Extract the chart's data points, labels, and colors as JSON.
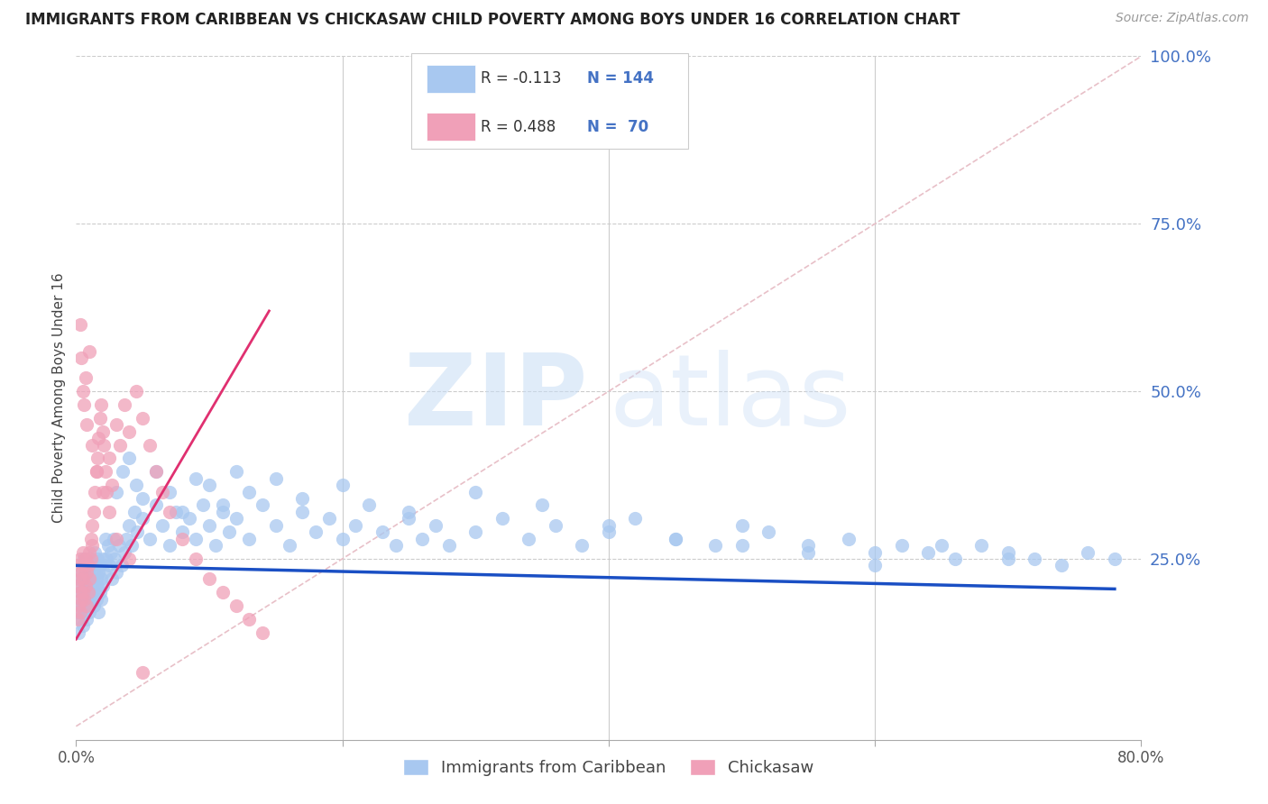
{
  "title": "IMMIGRANTS FROM CARIBBEAN VS CHICKASAW CHILD POVERTY AMONG BOYS UNDER 16 CORRELATION CHART",
  "source": "Source: ZipAtlas.com",
  "ylabel": "Child Poverty Among Boys Under 16",
  "xlim": [
    0.0,
    0.8
  ],
  "ylim": [
    -0.02,
    1.0
  ],
  "yticks": [
    0.0,
    0.25,
    0.5,
    0.75,
    1.0
  ],
  "yticklabels": [
    "",
    "25.0%",
    "50.0%",
    "75.0%",
    "100.0%"
  ],
  "blue_color": "#a8c8f0",
  "pink_color": "#f0a0b8",
  "blue_line_color": "#1a4fc4",
  "pink_line_color": "#e03070",
  "ref_line_color": "#e8c0c8",
  "label_blue": "Immigrants from Caribbean",
  "label_pink": "Chickasaw",
  "watermark_zip": "ZIP",
  "watermark_atlas": "atlas",
  "background_color": "#ffffff",
  "blue_trend_x0": 0.0,
  "blue_trend_y0": 0.24,
  "blue_trend_x1": 0.78,
  "blue_trend_y1": 0.205,
  "pink_trend_x0": 0.0,
  "pink_trend_y0": 0.13,
  "pink_trend_x1": 0.145,
  "pink_trend_y1": 0.62,
  "blue_scatter_x": [
    0.001,
    0.002,
    0.002,
    0.003,
    0.003,
    0.003,
    0.004,
    0.004,
    0.004,
    0.005,
    0.005,
    0.005,
    0.006,
    0.006,
    0.006,
    0.007,
    0.007,
    0.007,
    0.008,
    0.008,
    0.008,
    0.009,
    0.009,
    0.01,
    0.01,
    0.01,
    0.011,
    0.011,
    0.012,
    0.012,
    0.013,
    0.013,
    0.014,
    0.014,
    0.015,
    0.015,
    0.016,
    0.016,
    0.017,
    0.017,
    0.018,
    0.018,
    0.019,
    0.019,
    0.02,
    0.02,
    0.021,
    0.022,
    0.023,
    0.024,
    0.025,
    0.026,
    0.027,
    0.028,
    0.029,
    0.03,
    0.032,
    0.034,
    0.036,
    0.038,
    0.04,
    0.042,
    0.044,
    0.046,
    0.05,
    0.055,
    0.06,
    0.065,
    0.07,
    0.075,
    0.08,
    0.085,
    0.09,
    0.095,
    0.1,
    0.105,
    0.11,
    0.115,
    0.12,
    0.13,
    0.14,
    0.15,
    0.16,
    0.17,
    0.18,
    0.19,
    0.2,
    0.21,
    0.22,
    0.23,
    0.24,
    0.25,
    0.26,
    0.27,
    0.28,
    0.3,
    0.32,
    0.34,
    0.36,
    0.38,
    0.4,
    0.42,
    0.45,
    0.48,
    0.5,
    0.52,
    0.55,
    0.58,
    0.6,
    0.62,
    0.64,
    0.66,
    0.68,
    0.7,
    0.72,
    0.74,
    0.76,
    0.78,
    0.03,
    0.035,
    0.04,
    0.045,
    0.05,
    0.06,
    0.07,
    0.08,
    0.09,
    0.1,
    0.11,
    0.12,
    0.13,
    0.15,
    0.17,
    0.2,
    0.25,
    0.3,
    0.35,
    0.4,
    0.45,
    0.5,
    0.55,
    0.6,
    0.65,
    0.7
  ],
  "blue_scatter_y": [
    0.17,
    0.21,
    0.14,
    0.22,
    0.19,
    0.16,
    0.2,
    0.23,
    0.18,
    0.24,
    0.15,
    0.22,
    0.19,
    0.25,
    0.17,
    0.21,
    0.18,
    0.24,
    0.22,
    0.2,
    0.16,
    0.23,
    0.19,
    0.25,
    0.2,
    0.17,
    0.22,
    0.19,
    0.24,
    0.21,
    0.23,
    0.18,
    0.26,
    0.2,
    0.22,
    0.19,
    0.25,
    0.21,
    0.23,
    0.17,
    0.24,
    0.2,
    0.22,
    0.19,
    0.25,
    0.21,
    0.23,
    0.28,
    0.25,
    0.27,
    0.24,
    0.26,
    0.22,
    0.28,
    0.25,
    0.23,
    0.27,
    0.24,
    0.26,
    0.28,
    0.3,
    0.27,
    0.32,
    0.29,
    0.31,
    0.28,
    0.33,
    0.3,
    0.27,
    0.32,
    0.29,
    0.31,
    0.28,
    0.33,
    0.3,
    0.27,
    0.32,
    0.29,
    0.31,
    0.28,
    0.33,
    0.3,
    0.27,
    0.32,
    0.29,
    0.31,
    0.28,
    0.3,
    0.33,
    0.29,
    0.27,
    0.31,
    0.28,
    0.3,
    0.27,
    0.29,
    0.31,
    0.28,
    0.3,
    0.27,
    0.29,
    0.31,
    0.28,
    0.27,
    0.3,
    0.29,
    0.27,
    0.28,
    0.26,
    0.27,
    0.26,
    0.25,
    0.27,
    0.26,
    0.25,
    0.24,
    0.26,
    0.25,
    0.35,
    0.38,
    0.4,
    0.36,
    0.34,
    0.38,
    0.35,
    0.32,
    0.37,
    0.36,
    0.33,
    0.38,
    0.35,
    0.37,
    0.34,
    0.36,
    0.32,
    0.35,
    0.33,
    0.3,
    0.28,
    0.27,
    0.26,
    0.24,
    0.27,
    0.25
  ],
  "pink_scatter_x": [
    0.001,
    0.001,
    0.002,
    0.002,
    0.002,
    0.003,
    0.003,
    0.003,
    0.004,
    0.004,
    0.005,
    0.005,
    0.005,
    0.006,
    0.006,
    0.007,
    0.007,
    0.008,
    0.008,
    0.009,
    0.009,
    0.01,
    0.01,
    0.011,
    0.011,
    0.012,
    0.012,
    0.013,
    0.014,
    0.015,
    0.016,
    0.017,
    0.018,
    0.019,
    0.02,
    0.021,
    0.022,
    0.023,
    0.025,
    0.027,
    0.03,
    0.033,
    0.036,
    0.04,
    0.045,
    0.05,
    0.055,
    0.06,
    0.065,
    0.07,
    0.08,
    0.09,
    0.1,
    0.11,
    0.12,
    0.13,
    0.14,
    0.003,
    0.004,
    0.005,
    0.006,
    0.007,
    0.008,
    0.01,
    0.012,
    0.015,
    0.02,
    0.025,
    0.03,
    0.04,
    0.05
  ],
  "pink_scatter_y": [
    0.21,
    0.16,
    0.24,
    0.18,
    0.22,
    0.2,
    0.25,
    0.17,
    0.23,
    0.19,
    0.26,
    0.2,
    0.22,
    0.24,
    0.19,
    0.25,
    0.21,
    0.23,
    0.18,
    0.24,
    0.2,
    0.26,
    0.22,
    0.28,
    0.25,
    0.3,
    0.27,
    0.32,
    0.35,
    0.38,
    0.4,
    0.43,
    0.46,
    0.48,
    0.44,
    0.42,
    0.38,
    0.35,
    0.4,
    0.36,
    0.45,
    0.42,
    0.48,
    0.44,
    0.5,
    0.46,
    0.42,
    0.38,
    0.35,
    0.32,
    0.28,
    0.25,
    0.22,
    0.2,
    0.18,
    0.16,
    0.14,
    0.6,
    0.55,
    0.5,
    0.48,
    0.52,
    0.45,
    0.56,
    0.42,
    0.38,
    0.35,
    0.32,
    0.28,
    0.25,
    0.08
  ]
}
